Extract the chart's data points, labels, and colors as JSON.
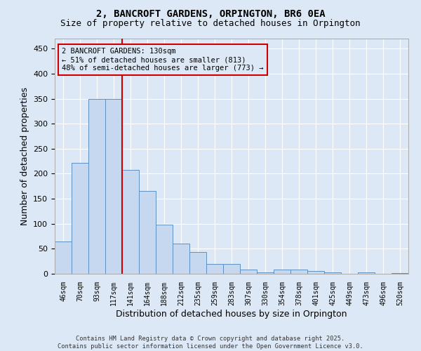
{
  "title": "2, BANCROFT GARDENS, ORPINGTON, BR6 0EA",
  "subtitle": "Size of property relative to detached houses in Orpington",
  "xlabel": "Distribution of detached houses by size in Orpington",
  "ylabel": "Number of detached properties",
  "categories": [
    "46sqm",
    "70sqm",
    "93sqm",
    "117sqm",
    "141sqm",
    "164sqm",
    "188sqm",
    "212sqm",
    "235sqm",
    "259sqm",
    "283sqm",
    "307sqm",
    "330sqm",
    "354sqm",
    "378sqm",
    "401sqm",
    "425sqm",
    "449sqm",
    "473sqm",
    "496sqm",
    "520sqm"
  ],
  "values": [
    65,
    222,
    350,
    350,
    208,
    165,
    98,
    60,
    43,
    20,
    20,
    8,
    3,
    8,
    8,
    5,
    3,
    0,
    3,
    0,
    2
  ],
  "bar_color": "#c5d8f0",
  "bar_edge_color": "#6090c0",
  "marker_line_color": "#cc0000",
  "annotation_line1": "2 BANCROFT GARDENS: 130sqm",
  "annotation_line2": "← 51% of detached houses are smaller (813)",
  "annotation_line3": "48% of semi-detached houses are larger (773) →",
  "annotation_box_facecolor": "#dce8f5",
  "annotation_box_edgecolor": "#cc0000",
  "background_color": "#dce8f5",
  "grid_color": "#ffffff",
  "ylim": [
    0,
    470
  ],
  "yticks": [
    0,
    50,
    100,
    150,
    200,
    250,
    300,
    350,
    400,
    450
  ],
  "footer_line1": "Contains HM Land Registry data © Crown copyright and database right 2025.",
  "footer_line2": "Contains public sector information licensed under the Open Government Licence v3.0."
}
